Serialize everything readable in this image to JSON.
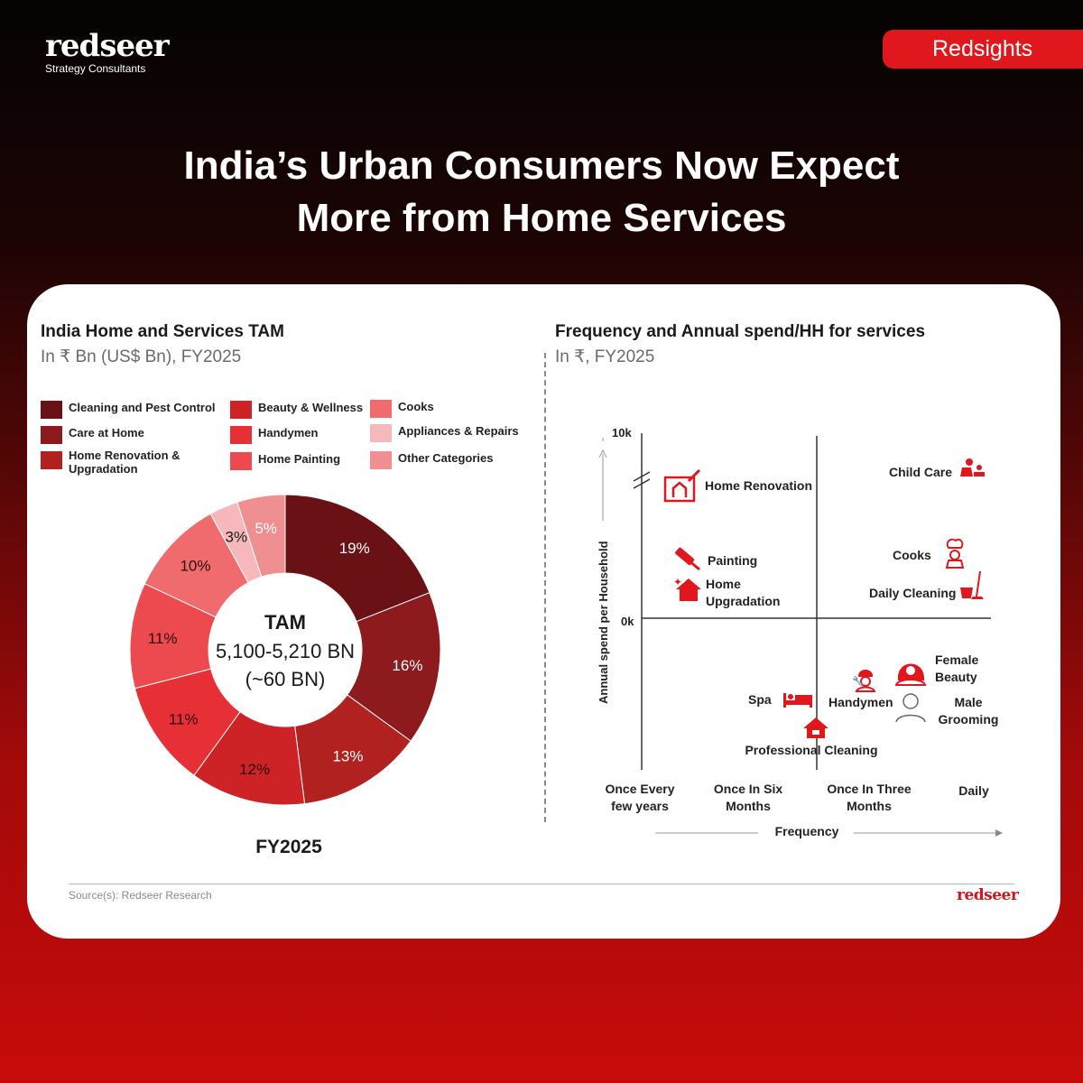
{
  "brand": {
    "name": "redseer",
    "tagline": "Strategy Consultants",
    "badge": "Redsights"
  },
  "headline": {
    "line1": "India’s Urban Consumers Now Expect",
    "line2": "More from Home Services"
  },
  "left_panel": {
    "title": "India Home and Services TAM",
    "subtitle": "In ₹ Bn (US$ Bn), FY2025",
    "legend": [
      {
        "label": "Cleaning and Pest Control",
        "color": "#6a1116"
      },
      {
        "label": "Care at Home",
        "color": "#8d1a1c"
      },
      {
        "label": "Home Renovation & Upgradation",
        "color": "#b1211f"
      },
      {
        "label": "Beauty & Wellness",
        "color": "#cd2326"
      },
      {
        "label": "Handymen",
        "color": "#e63036"
      },
      {
        "label": "Home Painting",
        "color": "#ec4a4f"
      },
      {
        "label": "Cooks",
        "color": "#ef6b6e"
      },
      {
        "label": "Appliances & Repairs",
        "color": "#f6b8ba"
      },
      {
        "label": "Other Categories",
        "color": "#f08f91"
      }
    ],
    "center": {
      "title": "TAM",
      "value": "5,100-5,210 BN",
      "usd": "(~60 BN)"
    },
    "year_label": "FY2025"
  },
  "right_panel": {
    "title": "Frequency and Annual spend/HH for services",
    "subtitle": "In ₹, FY2025"
  },
  "chart_data": [
    {
      "type": "pie",
      "donut": true,
      "categories": [
        "Cleaning and Pest Control",
        "Care at Home",
        "Home Renovation & Upgradation",
        "Beauty & Wellness",
        "Handymen",
        "Home Painting",
        "Cooks",
        "Appliances & Repairs",
        "Other Categories"
      ],
      "values": [
        19,
        16,
        13,
        12,
        11,
        11,
        10,
        3,
        5
      ],
      "labels": [
        "19%",
        "16%",
        "13%",
        "12%",
        "11%",
        "11%",
        "10%",
        "3%",
        "5%"
      ],
      "colors": [
        "#6a1116",
        "#8d1a1c",
        "#b1211f",
        "#cd2326",
        "#e63036",
        "#ec4a4f",
        "#ef6b6e",
        "#f6b8ba",
        "#f08f91"
      ],
      "title": "India Home and Services TAM",
      "legend": "top"
    },
    {
      "type": "scatter",
      "title": "Frequency and Annual spend/HH for services",
      "xlabel": "Frequency",
      "ylabel": "Annual spend per Household",
      "x_categories": [
        "Once Every few years",
        "Once In Six Months",
        "Once In Three Months",
        "Daily"
      ],
      "y_ticks": [
        "10k",
        "0k"
      ],
      "axis_break": true,
      "points": [
        {
          "label": "Home Renovation",
          "quadrant": "top-left",
          "icon": "blueprint-house-icon"
        },
        {
          "label": "Painting",
          "quadrant": "top-left",
          "icon": "paint-roller-icon"
        },
        {
          "label": "Home Upgradation",
          "quadrant": "top-left",
          "icon": "sparkle-house-icon"
        },
        {
          "label": "Child Care",
          "quadrant": "top-right",
          "icon": "child-care-icon"
        },
        {
          "label": "Cooks",
          "quadrant": "top-right",
          "icon": "chef-icon"
        },
        {
          "label": "Daily Cleaning",
          "quadrant": "top-right",
          "icon": "bucket-mop-icon"
        },
        {
          "label": "Spa",
          "quadrant": "bottom-left",
          "icon": "spa-bed-icon"
        },
        {
          "label": "Handymen",
          "quadrant": "bottom-right",
          "icon": "worker-icon"
        },
        {
          "label": "Female Beauty",
          "quadrant": "bottom-right",
          "icon": "woman-icon"
        },
        {
          "label": "Male Grooming",
          "quadrant": "bottom-right",
          "icon": "man-icon"
        },
        {
          "label": "Professional Cleaning",
          "quadrant": "bottom-middle",
          "icon": "clean-house-icon"
        }
      ]
    }
  ],
  "footer": {
    "source": "Source(s): Redseer Research",
    "logo": "redseer"
  }
}
